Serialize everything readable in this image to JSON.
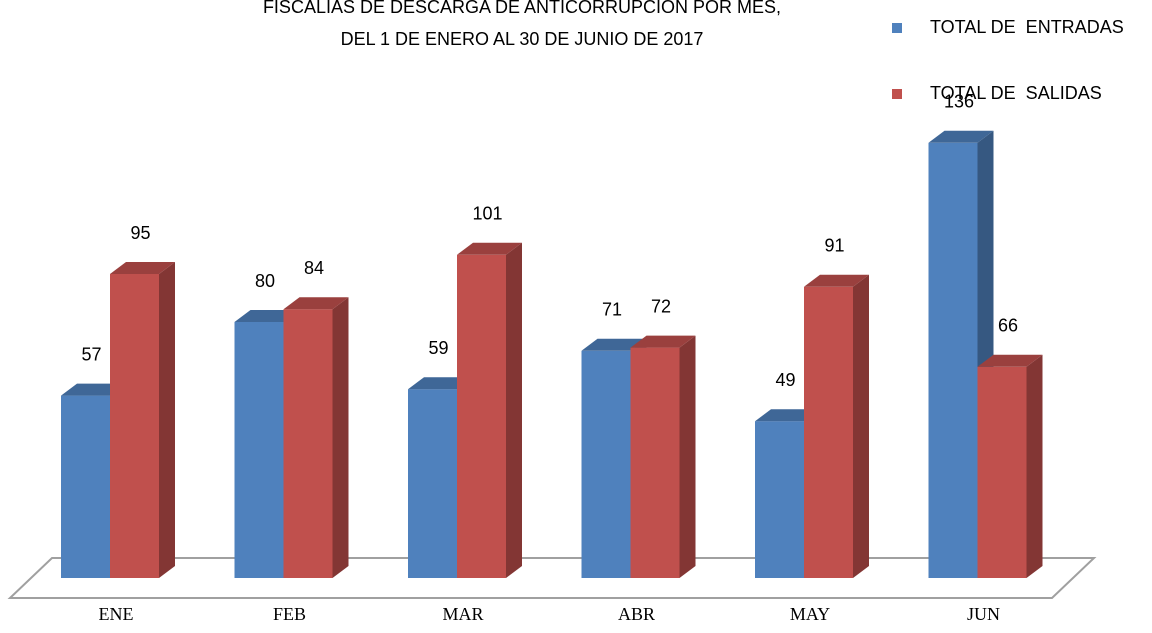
{
  "chart_data": {
    "type": "bar3d",
    "title": "FISCALIAS DE DESCARGA DE ANTICORRUPCION POR MES,",
    "subtitle": "DEL 1 DE ENERO AL 30 DE JUNIO DE 2017",
    "categories": [
      "ENE",
      "FEB",
      "MAR",
      "ABR",
      "MAY",
      "JUN"
    ],
    "series": [
      {
        "name": "TOTAL DE  ENTRADAS",
        "color": "#4f81bd",
        "values": [
          57,
          80,
          59,
          71,
          49,
          136
        ]
      },
      {
        "name": "TOTAL DE  SALIDAS",
        "color": "#c0504d",
        "values": [
          95,
          84,
          101,
          72,
          91,
          66
        ]
      }
    ]
  }
}
